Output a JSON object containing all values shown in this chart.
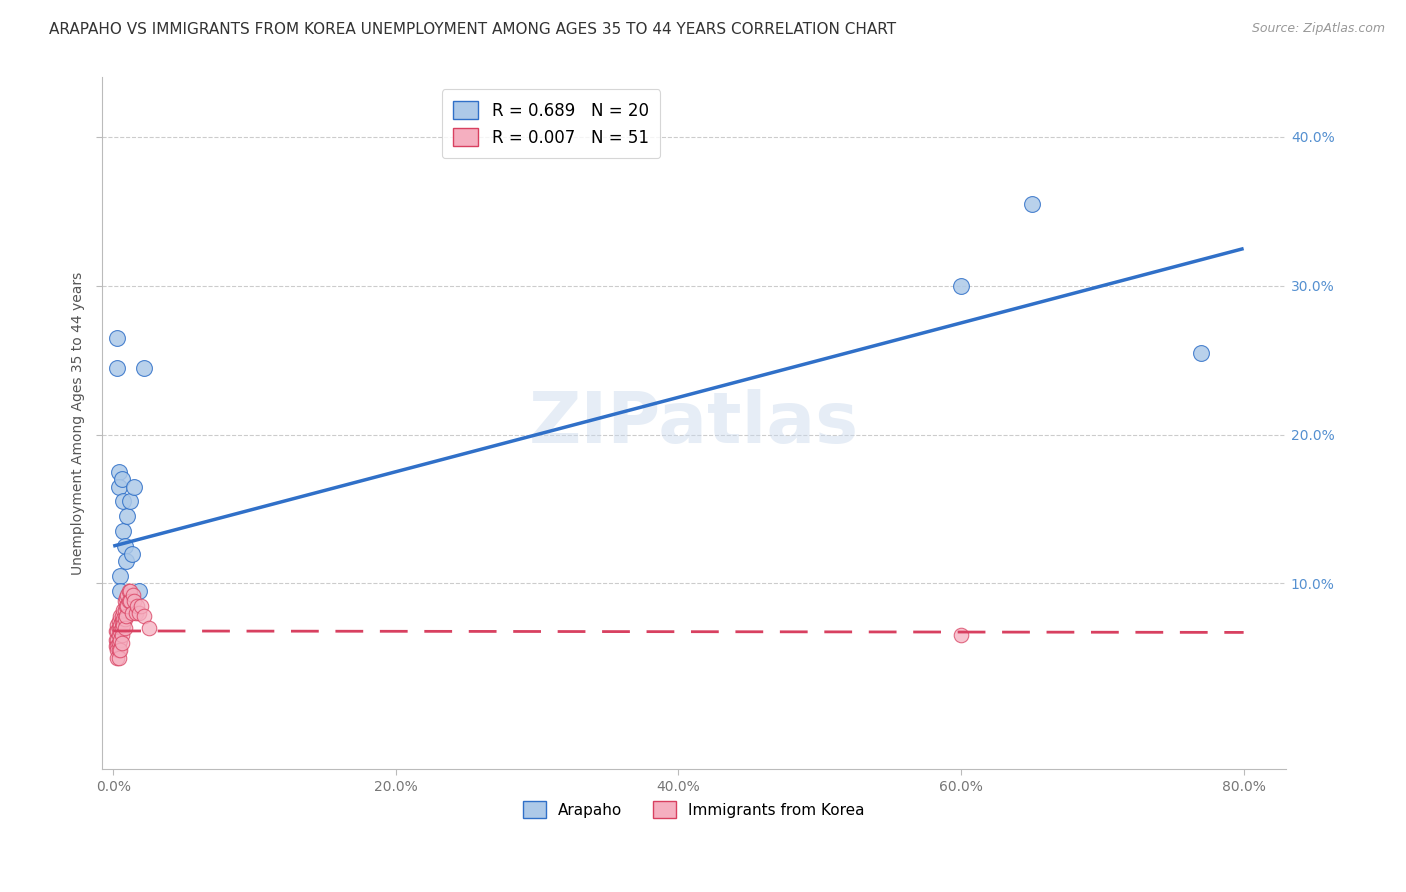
{
  "title": "ARAPAHO VS IMMIGRANTS FROM KOREA UNEMPLOYMENT AMONG AGES 35 TO 44 YEARS CORRELATION CHART",
  "source": "Source: ZipAtlas.com",
  "ylabel": "Unemployment Among Ages 35 to 44 years",
  "xlabel_ticks": [
    "0.0%",
    "20.0%",
    "40.0%",
    "60.0%",
    "80.0%"
  ],
  "ylabel_ticks": [
    "10.0%",
    "20.0%",
    "30.0%",
    "40.0%"
  ],
  "xlabel_tick_vals": [
    0.0,
    0.2,
    0.4,
    0.6,
    0.8
  ],
  "ylabel_tick_vals": [
    0.1,
    0.2,
    0.3,
    0.4
  ],
  "xlim": [
    -0.008,
    0.83
  ],
  "ylim": [
    -0.025,
    0.44
  ],
  "arapaho_color": "#adc9e8",
  "korea_color": "#f5afc0",
  "arapaho_line_color": "#3070c8",
  "korea_line_color": "#d84060",
  "background_color": "#ffffff",
  "grid_color": "#cccccc",
  "watermark": "ZIPatlas",
  "legend_label1": "Arapaho",
  "legend_label2": "Immigrants from Korea",
  "right_axis_color": "#5590d0",
  "arapaho_x": [
    0.003,
    0.003,
    0.004,
    0.004,
    0.005,
    0.005,
    0.006,
    0.007,
    0.007,
    0.008,
    0.009,
    0.01,
    0.012,
    0.013,
    0.015,
    0.018,
    0.022,
    0.6,
    0.65,
    0.77
  ],
  "arapaho_y": [
    0.265,
    0.245,
    0.175,
    0.165,
    0.105,
    0.095,
    0.17,
    0.155,
    0.135,
    0.125,
    0.115,
    0.145,
    0.155,
    0.12,
    0.165,
    0.095,
    0.245,
    0.3,
    0.355,
    0.255
  ],
  "korea_x": [
    0.002,
    0.002,
    0.002,
    0.003,
    0.003,
    0.003,
    0.003,
    0.003,
    0.003,
    0.004,
    0.004,
    0.004,
    0.004,
    0.004,
    0.004,
    0.005,
    0.005,
    0.005,
    0.005,
    0.005,
    0.006,
    0.006,
    0.006,
    0.006,
    0.006,
    0.007,
    0.007,
    0.007,
    0.008,
    0.008,
    0.008,
    0.008,
    0.009,
    0.009,
    0.009,
    0.01,
    0.01,
    0.011,
    0.011,
    0.012,
    0.012,
    0.013,
    0.014,
    0.015,
    0.016,
    0.017,
    0.018,
    0.02,
    0.022,
    0.025,
    0.6
  ],
  "korea_y": [
    0.068,
    0.062,
    0.058,
    0.072,
    0.068,
    0.062,
    0.058,
    0.055,
    0.05,
    0.075,
    0.07,
    0.065,
    0.06,
    0.055,
    0.05,
    0.078,
    0.072,
    0.068,
    0.062,
    0.055,
    0.078,
    0.074,
    0.07,
    0.065,
    0.06,
    0.082,
    0.076,
    0.072,
    0.088,
    0.082,
    0.076,
    0.07,
    0.09,
    0.085,
    0.078,
    0.092,
    0.085,
    0.095,
    0.088,
    0.095,
    0.088,
    0.08,
    0.092,
    0.088,
    0.08,
    0.085,
    0.08,
    0.085,
    0.078,
    0.07,
    0.065
  ],
  "blue_line_x0": 0.0,
  "blue_line_y0": 0.125,
  "blue_line_x1": 0.8,
  "blue_line_y1": 0.325,
  "pink_line_x0": 0.0,
  "pink_line_y0": 0.068,
  "pink_line_x1": 0.8,
  "pink_line_y1": 0.067,
  "title_fontsize": 11,
  "axis_label_fontsize": 10,
  "tick_fontsize": 10,
  "legend_fontsize": 12,
  "watermark_fontsize": 52,
  "watermark_color": "#c8d8ec",
  "watermark_alpha": 0.45
}
